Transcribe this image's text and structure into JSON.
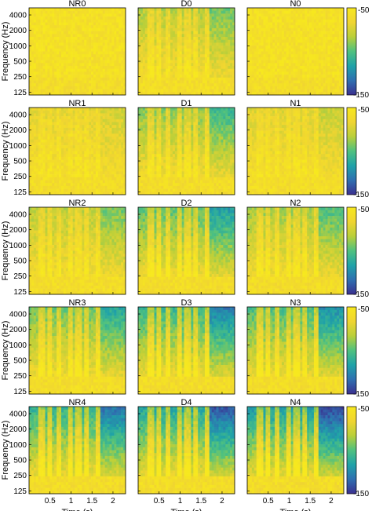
{
  "chart_data": {
    "type": "heatmap",
    "description_free": true,
    "rows": [
      [
        "NR0",
        "D0",
        "N0"
      ],
      [
        "NR1",
        "D1",
        "N1"
      ],
      [
        "NR2",
        "D2",
        "N2"
      ],
      [
        "NR3",
        "D3",
        "N3"
      ],
      [
        "NR4",
        "D4",
        "N4"
      ]
    ],
    "ylabel": "Frequency (Hz)",
    "xlabel": "Time (s)",
    "yticks": [
      125,
      250,
      500,
      1000,
      2000,
      4000
    ],
    "ytick_labels": [
      "125",
      "250",
      "500",
      "1000",
      "2000",
      "4000"
    ],
    "xticks": [
      0.5,
      1,
      1.5,
      2
    ],
    "xtick_labels": [
      "0.5",
      "1",
      "1.5",
      "2"
    ],
    "xlim": [
      0,
      2.3
    ],
    "ylim": [
      110,
      5500
    ],
    "yscale": "log",
    "colorbar": {
      "min": -150,
      "max": -50,
      "labels": [
        "-50",
        "-150"
      ]
    },
    "colormap": [
      "#3a2f8f",
      "#2f6fb0",
      "#1fa2a8",
      "#4fc17f",
      "#b9cf3a",
      "#f0d531",
      "#f7e81e"
    ]
  }
}
